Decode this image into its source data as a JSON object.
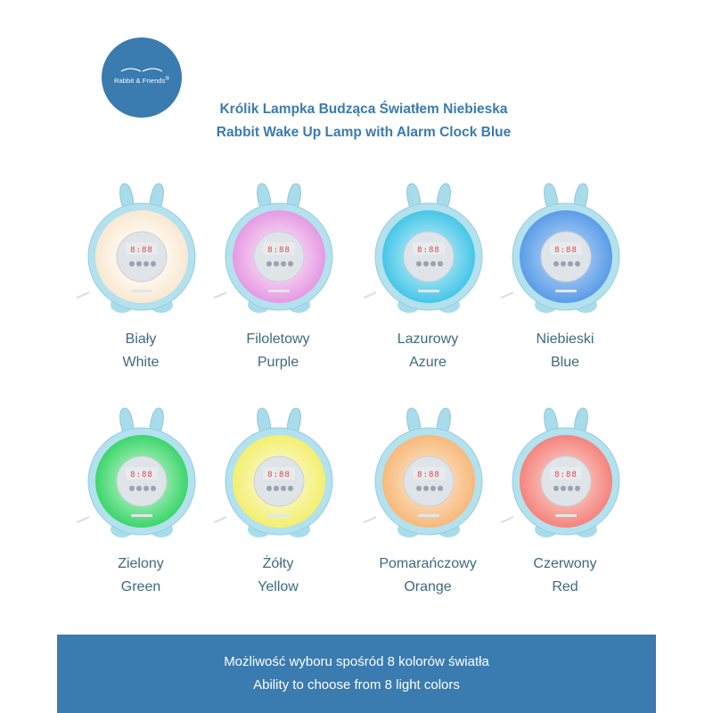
{
  "brand": {
    "logo_text": "Rabbit & Friends",
    "logo_reg": "®",
    "color": "#3a7bb0"
  },
  "title": {
    "line_pl": "Królik Lampka Budząca Światłem Niebieska",
    "line_en": "Rabbit Wake Up Lamp with Alarm Clock Blue"
  },
  "lamps": [
    {
      "name_pl": "Biały",
      "name_en": "White",
      "glow": "#f9e8d2",
      "glow_inner": "#fff6ea"
    },
    {
      "name_pl": "Filoletowy",
      "name_en": "Purple",
      "glow": "#e59ae2",
      "glow_inner": "#f2c4ef"
    },
    {
      "name_pl": "Lazurowy",
      "name_en": "Azure",
      "glow": "#46c6e8",
      "glow_inner": "#8adcf1"
    },
    {
      "name_pl": "Niebieski",
      "name_en": "Blue",
      "glow": "#5a9ce8",
      "glow_inner": "#8dbcf0"
    },
    {
      "name_pl": "Zielony",
      "name_en": "Green",
      "glow": "#3cd56c",
      "glow_inner": "#86e7a1"
    },
    {
      "name_pl": "Żółty",
      "name_en": "Yellow",
      "glow": "#f3ef6e",
      "glow_inner": "#f8f5a9"
    },
    {
      "name_pl": "Pomarańczowy",
      "name_en": "Orange",
      "glow": "#f7b97a",
      "glow_inner": "#fad2a8"
    },
    {
      "name_pl": "Czerwony",
      "name_en": "Red",
      "glow": "#f4847d",
      "glow_inner": "#f8b0aa"
    }
  ],
  "banner": {
    "line_pl": "Możliwość wyboru spośród 8 kolorów światła",
    "line_en": "Ability to choose from 8 light colors"
  }
}
